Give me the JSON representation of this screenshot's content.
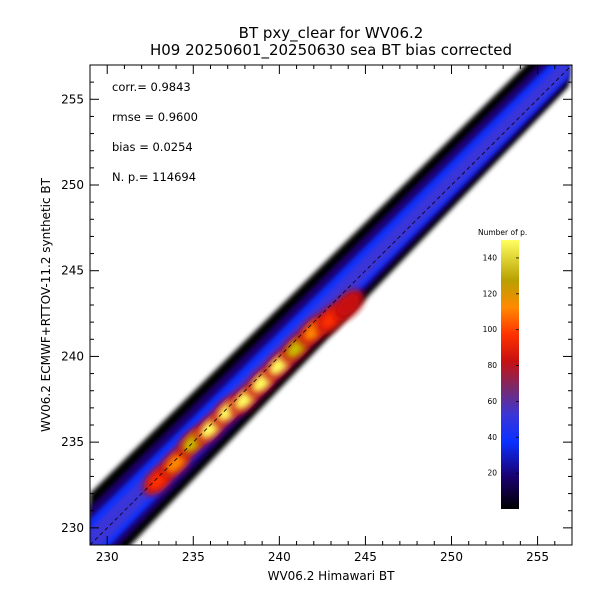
{
  "chart_data": {
    "type": "heatmap",
    "title": "BT pxy_clear for WV06.2",
    "subtitle": "H09 20250601_20250630 sea BT bias corrected",
    "xlabel": "WV06.2 Himawari BT",
    "ylabel": "WV06.2 ECMWF+RTTOV-11.2 synthetic BT",
    "xlim": [
      229,
      257
    ],
    "ylim": [
      229,
      257
    ],
    "x_ticks": [
      230,
      235,
      240,
      245,
      250,
      255
    ],
    "y_ticks": [
      230,
      235,
      240,
      245,
      250,
      255
    ],
    "stats": [
      {
        "text": "corr.= 0.9843"
      },
      {
        "text": "rmse = 0.9600"
      },
      {
        "text": "bias = 0.0254"
      },
      {
        "text": "N. p.=  114694"
      }
    ],
    "one_to_one_line": true,
    "colorbar": {
      "title": "Number of p.",
      "range": [
        0,
        150
      ],
      "ticks": [
        20,
        40,
        60,
        80,
        100,
        120,
        140
      ],
      "placement": "right-inside"
    },
    "density_peaks": [
      {
        "x": 233.0,
        "y": 232.8,
        "count": 90
      },
      {
        "x": 234.0,
        "y": 233.8,
        "count": 110
      },
      {
        "x": 235.0,
        "y": 235.0,
        "count": 125
      },
      {
        "x": 236.0,
        "y": 235.8,
        "count": 140
      },
      {
        "x": 237.0,
        "y": 236.8,
        "count": 145
      },
      {
        "x": 238.0,
        "y": 237.5,
        "count": 150
      },
      {
        "x": 239.0,
        "y": 238.5,
        "count": 150
      },
      {
        "x": 240.0,
        "y": 239.5,
        "count": 140
      },
      {
        "x": 241.0,
        "y": 240.5,
        "count": 120
      },
      {
        "x": 242.0,
        "y": 241.5,
        "count": 100
      },
      {
        "x": 243.0,
        "y": 242.2,
        "count": 95
      },
      {
        "x": 244.0,
        "y": 243.0,
        "count": 80
      }
    ]
  }
}
